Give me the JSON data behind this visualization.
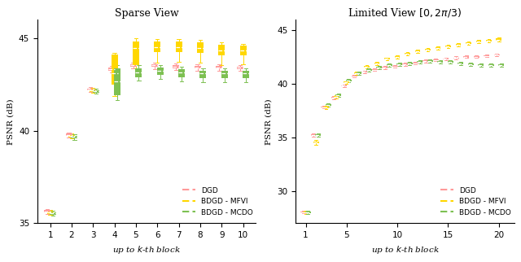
{
  "sparse_view": {
    "title": "Sparse View",
    "xlabel": "up to $k$-th block",
    "ylabel": "PSNR (dB)",
    "xlim": [
      0.4,
      10.6
    ],
    "ylim": [
      35,
      46
    ],
    "xticks": [
      1,
      2,
      3,
      4,
      5,
      6,
      7,
      8,
      9,
      10
    ],
    "yticks": [
      35,
      40,
      45
    ],
    "dgd": {
      "medians": [
        35.63,
        39.77,
        42.22,
        43.32,
        43.52,
        43.52,
        43.45,
        43.42,
        43.42,
        43.4
      ],
      "q1": [
        35.57,
        39.7,
        42.17,
        43.25,
        43.45,
        43.43,
        43.38,
        43.35,
        43.35,
        43.33
      ],
      "q3": [
        35.7,
        39.83,
        42.28,
        43.4,
        43.6,
        43.6,
        43.53,
        43.5,
        43.5,
        43.47
      ],
      "whislo": [
        35.5,
        39.62,
        42.1,
        43.16,
        43.36,
        43.34,
        43.28,
        43.25,
        43.25,
        43.22
      ],
      "whishi": [
        35.76,
        39.9,
        42.36,
        43.48,
        43.68,
        43.68,
        43.61,
        43.58,
        43.58,
        43.55
      ],
      "color": "#FF9999"
    },
    "mfvi": {
      "medians": [
        35.58,
        39.72,
        42.17,
        43.1,
        44.45,
        44.5,
        44.5,
        44.47,
        44.35,
        44.32
      ],
      "q1": [
        35.52,
        39.65,
        42.11,
        42.5,
        43.55,
        44.25,
        44.25,
        44.22,
        44.08,
        44.05
      ],
      "q3": [
        35.65,
        39.78,
        42.24,
        44.1,
        44.82,
        44.8,
        44.8,
        44.77,
        44.62,
        44.58
      ],
      "whislo": [
        35.45,
        39.57,
        42.04,
        41.85,
        43.35,
        43.65,
        43.72,
        43.68,
        43.52,
        43.58
      ],
      "whishi": [
        35.72,
        39.85,
        42.31,
        44.22,
        44.98,
        44.95,
        44.95,
        44.9,
        44.75,
        44.7
      ],
      "color": "#FFD700"
    },
    "mcdo": {
      "medians": [
        35.53,
        39.67,
        42.12,
        42.65,
        43.15,
        43.22,
        43.15,
        43.1,
        43.1,
        43.08
      ],
      "q1": [
        35.47,
        39.6,
        42.06,
        41.9,
        42.9,
        43.0,
        42.9,
        42.85,
        42.85,
        42.82
      ],
      "q3": [
        35.6,
        39.73,
        42.19,
        43.38,
        43.38,
        43.4,
        43.3,
        43.25,
        43.25,
        43.22
      ],
      "whislo": [
        35.4,
        39.52,
        41.99,
        41.65,
        42.7,
        42.8,
        42.68,
        42.63,
        42.63,
        42.6
      ],
      "whishi": [
        35.67,
        39.8,
        42.27,
        43.52,
        43.52,
        43.55,
        43.43,
        43.38,
        43.38,
        43.35
      ],
      "color": "#7DC052"
    }
  },
  "limited_view": {
    "title": "Limited View $[0, 2\\pi/3)$",
    "xlabel": "up to $k$-th block",
    "ylabel": "PSNR (dB)",
    "xlim": [
      0.0,
      21.5
    ],
    "ylim": [
      27,
      46
    ],
    "xticks": [
      1,
      5,
      10,
      15,
      20
    ],
    "yticks": [
      30,
      35,
      40,
      45
    ],
    "dgd": {
      "medians": [
        28.05,
        35.22,
        37.82,
        38.72,
        39.82,
        40.72,
        41.12,
        41.32,
        41.52,
        41.62,
        41.82,
        41.92,
        42.12,
        42.22,
        42.32,
        42.42,
        42.52,
        42.52,
        42.62,
        42.72
      ],
      "q1": [
        28.0,
        35.17,
        37.77,
        38.67,
        39.77,
        40.67,
        41.07,
        41.27,
        41.47,
        41.57,
        41.77,
        41.87,
        42.07,
        42.17,
        42.27,
        42.37,
        42.47,
        42.47,
        42.57,
        42.67
      ],
      "q3": [
        28.1,
        35.27,
        37.87,
        38.77,
        39.87,
        40.77,
        41.17,
        41.37,
        41.57,
        41.67,
        41.87,
        41.97,
        42.17,
        42.27,
        42.37,
        42.47,
        42.57,
        42.57,
        42.67,
        42.77
      ],
      "whislo": [
        27.95,
        35.1,
        37.7,
        38.6,
        39.7,
        40.6,
        41.0,
        41.2,
        41.4,
        41.5,
        41.7,
        41.8,
        42.0,
        42.1,
        42.2,
        42.3,
        42.4,
        42.4,
        42.5,
        42.6
      ],
      "whishi": [
        28.15,
        35.35,
        37.95,
        38.85,
        39.95,
        40.85,
        41.25,
        41.45,
        41.65,
        41.75,
        41.95,
        42.05,
        42.25,
        42.35,
        42.45,
        42.55,
        42.65,
        42.65,
        42.75,
        42.85
      ],
      "color": "#FF9999"
    },
    "mfvi": {
      "medians": [
        28.02,
        34.55,
        37.8,
        38.82,
        40.12,
        41.02,
        41.62,
        41.92,
        42.32,
        42.52,
        42.82,
        43.02,
        43.22,
        43.32,
        43.52,
        43.62,
        43.82,
        43.92,
        44.02,
        44.12
      ],
      "q1": [
        27.97,
        34.48,
        37.73,
        38.75,
        40.05,
        40.95,
        41.55,
        41.85,
        42.25,
        42.45,
        42.75,
        42.95,
        43.15,
        43.25,
        43.45,
        43.55,
        43.75,
        43.85,
        43.95,
        44.05
      ],
      "q3": [
        28.07,
        34.63,
        37.88,
        38.9,
        40.2,
        41.1,
        41.7,
        42.0,
        42.4,
        42.6,
        42.9,
        43.1,
        43.3,
        43.4,
        43.6,
        43.7,
        43.9,
        44.0,
        44.1,
        44.22
      ],
      "whislo": [
        27.9,
        34.35,
        37.65,
        38.67,
        39.97,
        40.87,
        41.47,
        41.77,
        42.17,
        42.37,
        42.67,
        42.87,
        43.07,
        43.17,
        43.37,
        43.47,
        43.67,
        43.77,
        43.87,
        43.97
      ],
      "whishi": [
        28.15,
        34.78,
        37.95,
        38.97,
        40.27,
        41.17,
        41.77,
        42.07,
        42.47,
        42.67,
        42.97,
        43.17,
        43.37,
        43.48,
        43.67,
        43.77,
        43.97,
        44.08,
        44.18,
        44.35
      ],
      "color": "#FFD700"
    },
    "mcdo": {
      "medians": [
        28.02,
        35.22,
        38.02,
        38.92,
        40.32,
        41.02,
        41.32,
        41.52,
        41.72,
        41.82,
        41.92,
        42.02,
        42.12,
        42.02,
        42.02,
        41.92,
        41.82,
        41.72,
        41.72,
        41.72
      ],
      "q1": [
        27.97,
        35.15,
        37.95,
        38.85,
        40.25,
        40.95,
        41.25,
        41.45,
        41.65,
        41.75,
        41.85,
        41.95,
        42.05,
        41.95,
        41.95,
        41.85,
        41.75,
        41.65,
        41.65,
        41.65
      ],
      "q3": [
        28.07,
        35.3,
        38.1,
        39.0,
        40.4,
        41.1,
        41.4,
        41.6,
        41.8,
        41.9,
        42.0,
        42.1,
        42.2,
        42.1,
        42.1,
        42.0,
        41.9,
        41.8,
        41.8,
        41.8
      ],
      "whislo": [
        27.9,
        35.07,
        37.87,
        38.77,
        40.17,
        40.87,
        41.17,
        41.37,
        41.57,
        41.67,
        41.77,
        41.87,
        41.97,
        41.87,
        41.87,
        41.77,
        41.67,
        41.57,
        41.57,
        41.57
      ],
      "whishi": [
        28.15,
        35.37,
        38.17,
        39.07,
        40.47,
        41.17,
        41.47,
        41.67,
        41.87,
        41.97,
        42.07,
        42.17,
        42.27,
        42.17,
        42.17,
        42.07,
        41.97,
        41.87,
        41.87,
        41.87
      ],
      "color": "#7DC052"
    }
  },
  "legend_labels": [
    "DGD",
    "BDGD - MFVI",
    "BDGD - MCDO"
  ],
  "legend_colors": [
    "#FF9999",
    "#FFD700",
    "#7DC052"
  ],
  "background_color": "#ffffff"
}
